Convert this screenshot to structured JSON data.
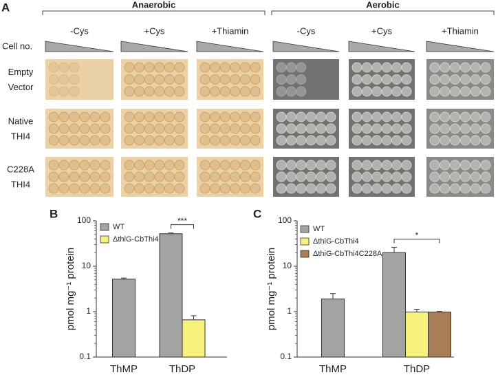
{
  "panel_a": {
    "label": "A",
    "conditions": [
      {
        "name": "Anaerobic",
        "columns": [
          "-Cys",
          "+Cys",
          "+Thiamin"
        ]
      },
      {
        "name": "Aerobic",
        "columns": [
          "-Cys",
          "+Cys",
          "+Thiamin"
        ]
      }
    ],
    "cell_no": "Cell no.",
    "rows": [
      [
        "Empty",
        "Vector"
      ],
      [
        "Native",
        "THI4"
      ],
      [
        "C228A",
        "THI4"
      ]
    ]
  },
  "chart_data": [
    {
      "type": "bar",
      "panel": "B",
      "ylabel": "pmol mg⁻¹ protein",
      "log_y": true,
      "ylim": [
        0.1,
        100
      ],
      "yticks": [
        100,
        10,
        1,
        0.1
      ],
      "categories": [
        "ThMP",
        "ThDP"
      ],
      "series": [
        {
          "name": "WT",
          "color": "#a3a3a3",
          "values": [
            5.2,
            52
          ],
          "errors": [
            0.3,
            2
          ]
        },
        {
          "name": "ΔthiG-CbThi4",
          "color": "#f6f27c",
          "values": [
            null,
            0.66
          ],
          "errors": [
            null,
            0.15
          ]
        }
      ],
      "annotation": "***"
    },
    {
      "type": "bar",
      "panel": "C",
      "ylabel": "pmol mg⁻¹ protein",
      "log_y": true,
      "ylim": [
        0.1,
        100
      ],
      "yticks": [
        100,
        10,
        1,
        0.1
      ],
      "categories": [
        "ThMP",
        "ThDP"
      ],
      "series": [
        {
          "name": "WT",
          "color": "#a3a3a3",
          "values": [
            1.9,
            20
          ],
          "errors": [
            0.6,
            6
          ]
        },
        {
          "name": "ΔthiG-CbThi4",
          "color": "#f6f27c",
          "values": [
            null,
            0.98
          ],
          "errors": [
            null,
            0.15
          ]
        },
        {
          "name": "ΔthiG-CbThi4C228A",
          "color": "#a97d55",
          "values": [
            null,
            0.98
          ],
          "errors": [
            null,
            0.03
          ]
        }
      ],
      "annotation": "*"
    }
  ]
}
